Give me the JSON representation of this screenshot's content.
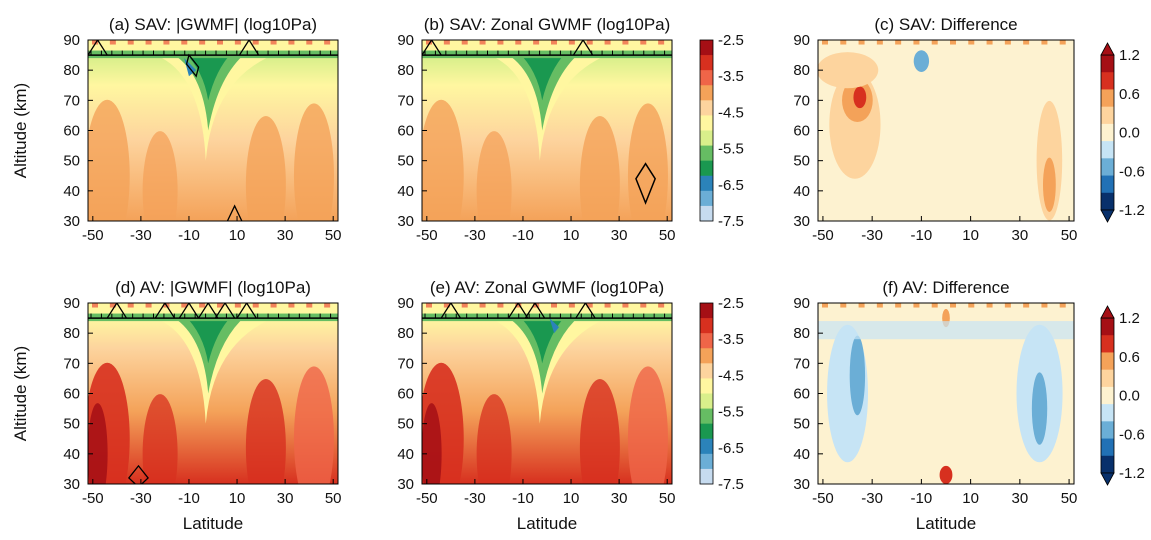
{
  "chart_data": [
    {
      "type": "heatmap",
      "title": "(a)  SAV:  |GWMF| (log10Pa)",
      "ylabel": "Altitude (km)",
      "xlabel": "",
      "x_ticks": [
        "-50",
        "-30",
        "-10",
        "10",
        "30",
        "50"
      ],
      "y_ticks": [
        "30",
        "40",
        "50",
        "60",
        "70",
        "80",
        "90"
      ],
      "xlim": [
        -52,
        52
      ],
      "ylim": [
        30,
        90
      ],
      "colorbar": "gwmf"
    },
    {
      "type": "heatmap",
      "title": "(b)  SAV:  Zonal GWMF (log10Pa)",
      "ylabel": "",
      "xlabel": "",
      "x_ticks": [
        "-50",
        "-30",
        "-10",
        "10",
        "30",
        "50"
      ],
      "y_ticks": [
        "30",
        "40",
        "50",
        "60",
        "70",
        "80",
        "90"
      ],
      "xlim": [
        -52,
        52
      ],
      "ylim": [
        30,
        90
      ],
      "colorbar": "gwmf"
    },
    {
      "type": "heatmap",
      "title": "(c)  SAV:  Difference",
      "ylabel": "",
      "xlabel": "",
      "x_ticks": [
        "-50",
        "-30",
        "-10",
        "10",
        "30",
        "50"
      ],
      "y_ticks": [
        "30",
        "40",
        "50",
        "60",
        "70",
        "80",
        "90"
      ],
      "xlim": [
        -52,
        52
      ],
      "ylim": [
        30,
        90
      ],
      "colorbar": "diff"
    },
    {
      "type": "heatmap",
      "title": "(d)  AV:  |GWMF| (log10Pa)",
      "ylabel": "Altitude (km)",
      "xlabel": "Latitude",
      "x_ticks": [
        "-50",
        "-30",
        "-10",
        "10",
        "30",
        "50"
      ],
      "y_ticks": [
        "30",
        "40",
        "50",
        "60",
        "70",
        "80",
        "90"
      ],
      "xlim": [
        -52,
        52
      ],
      "ylim": [
        30,
        90
      ],
      "colorbar": "gwmf"
    },
    {
      "type": "heatmap",
      "title": "(e)  AV:  Zonal GWMF (log10Pa)",
      "ylabel": "",
      "xlabel": "Latitude",
      "x_ticks": [
        "-50",
        "-30",
        "-10",
        "10",
        "30",
        "50"
      ],
      "y_ticks": [
        "30",
        "40",
        "50",
        "60",
        "70",
        "80",
        "90"
      ],
      "xlim": [
        -52,
        52
      ],
      "ylim": [
        30,
        90
      ],
      "colorbar": "gwmf"
    },
    {
      "type": "heatmap",
      "title": "(f)  AV:  Difference",
      "ylabel": "",
      "xlabel": "Latitude",
      "x_ticks": [
        "-50",
        "-30",
        "-10",
        "10",
        "30",
        "50"
      ],
      "y_ticks": [
        "30",
        "40",
        "50",
        "60",
        "70",
        "80",
        "90"
      ],
      "xlim": [
        -52,
        52
      ],
      "ylim": [
        30,
        90
      ],
      "colorbar": "diff"
    }
  ],
  "colorbars": {
    "gwmf": {
      "labels": [
        "-2.5",
        "-3.5",
        "-4.5",
        "-5.5",
        "-6.5",
        "-7.5"
      ],
      "colors": [
        "#a50f15",
        "#d7301f",
        "#ef6548",
        "#f4a259",
        "#fdd49e",
        "#fff7a0",
        "#d9ef8b",
        "#66bd63",
        "#1a9850",
        "#2b83ba",
        "#6baed6",
        "#c6dbef"
      ]
    },
    "diff": {
      "labels": [
        "1.2",
        "0.6",
        "0.0",
        "-0.6",
        "-1.2"
      ],
      "colors": [
        "#a50f15",
        "#d7301f",
        "#f4a259",
        "#fdd49e",
        "#fdf2d0",
        "#c6e4f5",
        "#6baed6",
        "#2171b5",
        "#08306b"
      ]
    }
  }
}
